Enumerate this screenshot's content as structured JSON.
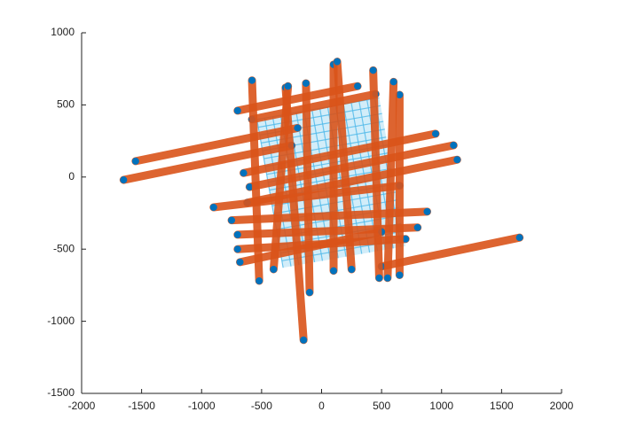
{
  "chart_data": {
    "type": "line",
    "xlim": [
      -2000,
      2000
    ],
    "xticks": [
      -2000,
      -1500,
      -1000,
      -500,
      0,
      500,
      1000,
      1500,
      2000
    ],
    "ylim": [
      -1500,
      1000
    ],
    "yticks": [
      -1500,
      -1000,
      -500,
      0,
      500,
      1000
    ],
    "marker_color": "#0072bd",
    "mesh_color": "#4db8e8",
    "series": [
      {
        "color": "#d95319",
        "x": [
          -1650,
          -250
        ],
        "values": [
          -20,
          218
        ]
      },
      {
        "color": "#d95319",
        "x": [
          -1550,
          -200
        ],
        "values": [
          110,
          340
        ]
      },
      {
        "color": "#d95319",
        "x": [
          -700,
          300
        ],
        "values": [
          460,
          630
        ]
      },
      {
        "color": "#d95319",
        "x": [
          -580,
          450
        ],
        "values": [
          400,
          575
        ]
      },
      {
        "color": "#d95319",
        "x": [
          -650,
          950
        ],
        "values": [
          28,
          300
        ]
      },
      {
        "color": "#d95319",
        "x": [
          -600,
          1100
        ],
        "values": [
          -69,
          220
        ]
      },
      {
        "color": "#d95319",
        "x": [
          -620,
          1130
        ],
        "values": [
          -178,
          120
        ]
      },
      {
        "color": "#d95319",
        "x": [
          -900,
          650
        ],
        "values": [
          -210,
          -60
        ]
      },
      {
        "color": "#d95319",
        "x": [
          -750,
          880
        ],
        "values": [
          -300,
          -240
        ]
      },
      {
        "color": "#d95319",
        "x": [
          -700,
          800
        ],
        "values": [
          -400,
          -350
        ]
      },
      {
        "color": "#d95319",
        "x": [
          -700,
          700
        ],
        "values": [
          -500,
          -430
        ]
      },
      {
        "color": "#d95319",
        "x": [
          -680,
          500
        ],
        "values": [
          -590,
          -380
        ]
      },
      {
        "color": "#d95319",
        "x": [
          500,
          1650
        ],
        "values": [
          -620,
          -420
        ]
      },
      {
        "color": "#d95319",
        "x": [
          -150,
          -300
        ],
        "values": [
          -1130,
          620
        ]
      },
      {
        "color": "#d95319",
        "x": [
          -100,
          -130
        ],
        "values": [
          -800,
          650
        ]
      },
      {
        "color": "#d95319",
        "x": [
          -520,
          -580
        ],
        "values": [
          -720,
          670
        ]
      },
      {
        "color": "#d95319",
        "x": [
          -400,
          -280
        ],
        "values": [
          -640,
          630
        ]
      },
      {
        "color": "#d95319",
        "x": [
          100,
          100
        ],
        "values": [
          -650,
          780
        ]
      },
      {
        "color": "#d95319",
        "x": [
          250,
          130
        ],
        "values": [
          -640,
          800
        ]
      },
      {
        "color": "#d95319",
        "x": [
          480,
          430
        ],
        "values": [
          -700,
          740
        ]
      },
      {
        "color": "#d95319",
        "x": [
          650,
          650
        ],
        "values": [
          -680,
          570
        ]
      },
      {
        "color": "#d95319",
        "x": [
          550,
          600
        ],
        "values": [
          -700,
          660
        ]
      }
    ]
  }
}
